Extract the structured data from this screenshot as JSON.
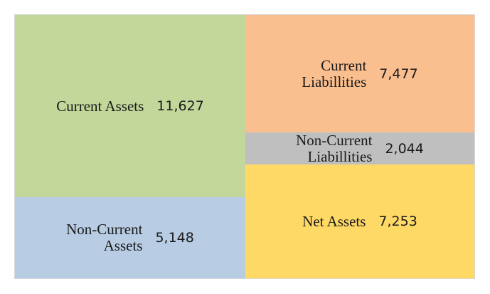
{
  "chart_data": {
    "type": "table",
    "left_column": [
      {
        "label": "Current Assets",
        "value": 11627,
        "value_text": "11,627",
        "color": "#c4d79b"
      },
      {
        "label": "Non-Current\nAssets",
        "value": 5148,
        "value_text": "5,148",
        "color": "#b8cce4"
      }
    ],
    "right_column": [
      {
        "label": "Current\nLiabillities",
        "value": 7477,
        "value_text": "7,477",
        "color": "#fabf8f"
      },
      {
        "label": "Non-Current\nLiabillities",
        "value": 2044,
        "value_text": "2,044",
        "color": "#bfbfbf"
      },
      {
        "label": "Net Assets",
        "value": 7253,
        "value_text": "7,253",
        "color": "#ffd966"
      }
    ]
  }
}
